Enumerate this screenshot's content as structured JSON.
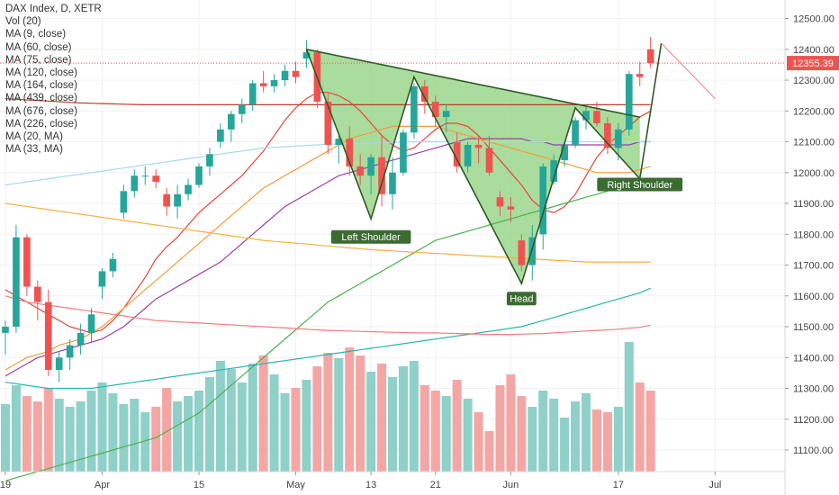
{
  "legend": {
    "title": "DAX Index, D, XETR",
    "items": [
      "Vol (20)",
      "MA (9, close)",
      "MA (60, close)",
      "MA (75, close)",
      "MA (120, close)",
      "MA (164, close)",
      "MA (439, close)",
      "MA (676, close)",
      "MA (226, close)",
      "MA (20, MA)",
      "MA (33, MA)"
    ]
  },
  "chart_data": {
    "type": "candlestick",
    "y_axis": {
      "range": [
        11030,
        12560
      ],
      "ticks": [
        11100,
        11200,
        11300,
        11400,
        11500,
        11600,
        11700,
        11800,
        11900,
        12000,
        12100,
        12200,
        12300,
        12400,
        12500
      ],
      "labels": [
        "11100.00",
        "11200.00",
        "11300.00",
        "11400.00",
        "11500.00",
        "11600.00",
        "11700.00",
        "11800.00",
        "11900.00",
        "12000.00",
        "12100.00",
        "12200.00",
        "12300.00",
        "12400.00",
        "12500.00"
      ]
    },
    "x_axis": {
      "ticks": [
        {
          "label": "19",
          "i": 0
        },
        {
          "label": "Apr",
          "i": 9
        },
        {
          "label": "15",
          "i": 18
        },
        {
          "label": "May",
          "i": 27
        },
        {
          "label": "13",
          "i": 34
        },
        {
          "label": "21",
          "i": 40
        },
        {
          "label": "Jun",
          "i": 47
        },
        {
          "label": "17",
          "i": 57
        },
        {
          "label": "Jul",
          "i": 66
        }
      ],
      "slots": 73
    },
    "last_price": {
      "value": 12355.39,
      "label": "12355.39"
    },
    "colors": {
      "up": "#26a69a",
      "down": "#ef5350",
      "vol_up": "#8fd0c8",
      "vol_down": "#f4a6a4",
      "pattern_fill": "#8ed27c",
      "pattern_stroke": "#2e5a27"
    },
    "candles": [
      [
        11480,
        11520,
        11410,
        11500
      ],
      [
        11500,
        11830,
        11480,
        11790
      ],
      [
        11790,
        11800,
        11600,
        11630
      ],
      [
        11630,
        11650,
        11520,
        11580
      ],
      [
        11580,
        11620,
        11340,
        11360
      ],
      [
        11360,
        11420,
        11320,
        11400
      ],
      [
        11400,
        11460,
        11360,
        11440
      ],
      [
        11440,
        11510,
        11410,
        11480
      ],
      [
        11480,
        11560,
        11450,
        11540
      ],
      [
        11630,
        11690,
        11590,
        11680
      ],
      [
        11680,
        11740,
        11660,
        11720
      ],
      [
        11870,
        11960,
        11850,
        11940
      ],
      [
        11940,
        12010,
        11920,
        11990
      ],
      [
        11990,
        12020,
        11960,
        11990
      ],
      [
        11990,
        12010,
        11950,
        11970
      ],
      [
        11930,
        11950,
        11860,
        11890
      ],
      [
        11890,
        11960,
        11850,
        11930
      ],
      [
        11930,
        11980,
        11910,
        11960
      ],
      [
        11960,
        12030,
        11950,
        12020
      ],
      [
        12020,
        12080,
        11990,
        12060
      ],
      [
        12100,
        12160,
        12080,
        12140
      ],
      [
        12140,
        12200,
        12100,
        12190
      ],
      [
        12190,
        12240,
        12160,
        12220
      ],
      [
        12220,
        12300,
        12200,
        12290
      ],
      [
        12290,
        12330,
        12260,
        12280
      ],
      [
        12280,
        12320,
        12260,
        12300
      ],
      [
        12300,
        12350,
        12280,
        12330
      ],
      [
        12330,
        12360,
        12290,
        12310
      ],
      [
        12370,
        12430,
        12340,
        12390
      ],
      [
        12390,
        12400,
        12210,
        12230
      ],
      [
        12230,
        12260,
        12060,
        12090
      ],
      [
        12090,
        12120,
        12030,
        12110
      ],
      [
        12110,
        12150,
        11990,
        12020
      ],
      [
        12020,
        12060,
        11960,
        11990
      ],
      [
        11990,
        12060,
        11930,
        12050
      ],
      [
        12050,
        12120,
        11890,
        11930
      ],
      [
        11930,
        12050,
        11880,
        12000
      ],
      [
        12000,
        12140,
        11990,
        12130
      ],
      [
        12130,
        12290,
        12110,
        12280
      ],
      [
        12280,
        12300,
        12190,
        12230
      ],
      [
        12230,
        12250,
        12150,
        12180
      ],
      [
        12180,
        12220,
        12130,
        12200
      ],
      [
        12100,
        12130,
        12000,
        12020
      ],
      [
        12020,
        12100,
        12000,
        12090
      ],
      [
        12090,
        12120,
        12030,
        12080
      ],
      [
        12080,
        12120,
        11990,
        12000
      ],
      [
        11920,
        11940,
        11860,
        11890
      ],
      [
        11890,
        11920,
        11840,
        11880
      ],
      [
        11780,
        11800,
        11680,
        11700
      ],
      [
        11700,
        11830,
        11650,
        11790
      ],
      [
        11800,
        12030,
        11750,
        12020
      ],
      [
        11970,
        12060,
        11960,
        12040
      ],
      [
        12040,
        12100,
        12020,
        12090
      ],
      [
        12090,
        12180,
        12080,
        12170
      ],
      [
        12170,
        12220,
        12140,
        12200
      ],
      [
        12200,
        12230,
        12150,
        12160
      ],
      [
        12160,
        12180,
        12060,
        12080
      ],
      [
        12080,
        12160,
        12040,
        12140
      ],
      [
        12140,
        12330,
        12120,
        12320
      ],
      [
        12320,
        12360,
        12280,
        12310
      ],
      [
        12400,
        12440,
        12340,
        12355
      ]
    ],
    "volume": [
      0.25,
      0.32,
      0.28,
      0.26,
      0.31,
      0.27,
      0.24,
      0.26,
      0.3,
      0.33,
      0.29,
      0.25,
      0.27,
      0.22,
      0.24,
      0.31,
      0.26,
      0.28,
      0.3,
      0.35,
      0.41,
      0.38,
      0.33,
      0.4,
      0.43,
      0.36,
      0.29,
      0.31,
      0.34,
      0.39,
      0.44,
      0.42,
      0.46,
      0.43,
      0.37,
      0.4,
      0.35,
      0.39,
      0.41,
      0.32,
      0.3,
      0.28,
      0.34,
      0.27,
      0.22,
      0.15,
      0.32,
      0.36,
      0.28,
      0.24,
      0.3,
      0.27,
      0.2,
      0.26,
      0.29,
      0.23,
      0.22,
      0.24,
      0.48,
      0.33,
      0.3
    ],
    "moving_averages": [
      {
        "name": "MA (9, close)",
        "color": "#e8453c",
        "start": 0,
        "values": [
          11620,
          11600,
          11580,
          11560,
          11540,
          11520,
          11500,
          11490,
          11480,
          11490,
          11520,
          11560,
          11610,
          11660,
          11720,
          11760,
          11790,
          11830,
          11870,
          11900,
          11930,
          11960,
          11990,
          12030,
          12070,
          12120,
          12170,
          12210,
          12240,
          12260,
          12260,
          12250,
          12230,
          12200,
          12160,
          12120,
          12090,
          12070,
          12080,
          12110,
          12140,
          12160,
          12160,
          12150,
          12120,
          12080,
          12040,
          12000,
          11960,
          11910,
          11880,
          11870,
          11890,
          11930,
          11990,
          12050,
          12090,
          12120,
          12150,
          12180,
          12200
        ]
      },
      {
        "name": "MA (60, close)",
        "color": "#9c3fa8",
        "start": 0,
        "values": [
          11340,
          11360,
          11380,
          11400,
          11410,
          11420,
          11430,
          11440,
          11450,
          11460,
          11480,
          11500,
          11530,
          11560,
          11590,
          11610,
          11630,
          11650,
          11670,
          11690,
          11710,
          11740,
          11770,
          11800,
          11830,
          11860,
          11890,
          11910,
          11930,
          11950,
          11970,
          11990,
          12000,
          12010,
          12020,
          12030,
          12040,
          12050,
          12060,
          12070,
          12080,
          12090,
          12100,
          12110,
          12110,
          12110,
          12110,
          12110,
          12110,
          12100,
          12100,
          12090,
          12090,
          12090,
          12090,
          12090,
          12090,
          12090,
          12090,
          12100,
          12100
        ]
      },
      {
        "name": "MA (75, close)",
        "color": "#f29b3c",
        "start": 0,
        "values": [
          11360,
          11380,
          11400,
          11410,
          11420,
          11440,
          11450,
          11460,
          11480,
          11500,
          11530,
          11560,
          11590,
          11620,
          11650,
          11680,
          11710,
          11740,
          11770,
          11800,
          11830,
          11860,
          11890,
          11920,
          11950,
          11970,
          11990,
          12010,
          12030,
          12050,
          12070,
          12090,
          12110,
          12120,
          12130,
          12140,
          12150,
          12150,
          12150,
          12150,
          12150,
          12140,
          12130,
          12120,
          12110,
          12100,
          12090,
          12080,
          12070,
          12060,
          12050,
          12040,
          12030,
          12020,
          12010,
          12000,
          12000,
          12000,
          12000,
          12010,
          12020
        ]
      },
      {
        "name": "MA (120, close)",
        "color": "#4caf50",
        "start": 0,
        "values": [
          11000,
          11010,
          11020,
          11030,
          11040,
          11050,
          11060,
          11070,
          11080,
          11090,
          11100,
          11110,
          11120,
          11130,
          11140,
          11160,
          11180,
          11200,
          11220,
          11250,
          11280,
          11310,
          11340,
          11370,
          11400,
          11430,
          11460,
          11490,
          11520,
          11550,
          11580,
          11600,
          11620,
          11640,
          11660,
          11680,
          11700,
          11720,
          11740,
          11760,
          11780,
          11790,
          11800,
          11810,
          11820,
          11830,
          11840,
          11850,
          11860,
          11870,
          11880,
          11890,
          11900,
          11910,
          11920,
          11930,
          11940,
          11950,
          11960,
          11970,
          11980
        ]
      },
      {
        "name": "MA (164, close)",
        "color": "#26b5b0",
        "start": 0,
        "values": [
          11320,
          11315,
          11310,
          11305,
          11300,
          11300,
          11300,
          11300,
          11300,
          11305,
          11310,
          11315,
          11320,
          11325,
          11330,
          11335,
          11340,
          11345,
          11350,
          11355,
          11360,
          11365,
          11370,
          11375,
          11380,
          11385,
          11390,
          11395,
          11400,
          11405,
          11410,
          11415,
          11420,
          11425,
          11430,
          11435,
          11440,
          11445,
          11450,
          11455,
          11460,
          11465,
          11470,
          11475,
          11480,
          11485,
          11490,
          11495,
          11500,
          11510,
          11520,
          11530,
          11540,
          11550,
          11560,
          11570,
          11580,
          11590,
          11600,
          11610,
          11625
        ]
      },
      {
        "name": "MA (439, close)",
        "color": "#f47c7c",
        "start": 0,
        "values": [
          11600,
          11590,
          11580,
          11575,
          11570,
          11565,
          11560,
          11555,
          11550,
          11545,
          11540,
          11535,
          11530,
          11525,
          11520,
          11518,
          11516,
          11514,
          11512,
          11510,
          11508,
          11506,
          11504,
          11502,
          11500,
          11498,
          11496,
          11494,
          11492,
          11490,
          11488,
          11487,
          11486,
          11485,
          11484,
          11483,
          11482,
          11481,
          11480,
          11480,
          11480,
          11479,
          11478,
          11477,
          11476,
          11475,
          11475,
          11475,
          11476,
          11477,
          11478,
          11480,
          11482,
          11484,
          11486,
          11488,
          11490,
          11492,
          11495,
          11498,
          11505
        ]
      },
      {
        "name": "MA (676, close)",
        "color": "#a8d8ea",
        "start": 0,
        "values": [
          11960,
          11965,
          11970,
          11975,
          11980,
          11985,
          11990,
          11995,
          12000,
          12005,
          12010,
          12015,
          12020,
          12025,
          12030,
          12035,
          12040,
          12045,
          12050,
          12055,
          12060,
          12065,
          12070,
          12075,
          12080,
          12082,
          12084,
          12086,
          12088,
          12090,
          12092,
          12093,
          12094,
          12095,
          12096,
          12097,
          12098,
          12099,
          12100,
          12100,
          12100,
          12100,
          12100,
          12100,
          12100,
          12100,
          12100,
          12100,
          12100,
          12100,
          12100,
          12100,
          12100,
          12100,
          12100,
          12100,
          12100,
          12100,
          12100,
          12100,
          12100
        ]
      },
      {
        "name": "MA (226, close)",
        "color": "#f5b041",
        "start": 0,
        "values": [
          11900,
          11895,
          11890,
          11885,
          11880,
          11875,
          11870,
          11865,
          11860,
          11855,
          11850,
          11845,
          11840,
          11835,
          11830,
          11825,
          11820,
          11815,
          11810,
          11805,
          11800,
          11795,
          11790,
          11785,
          11780,
          11777,
          11774,
          11771,
          11768,
          11765,
          11762,
          11759,
          11756,
          11753,
          11750,
          11748,
          11746,
          11744,
          11742,
          11740,
          11738,
          11736,
          11734,
          11732,
          11730,
          11728,
          11726,
          11724,
          11722,
          11720,
          11718,
          11716,
          11714,
          11712,
          11710,
          11710,
          11710,
          11710,
          11710,
          11710,
          11710
        ]
      },
      {
        "name": "MA (33, MA)",
        "color": "#c0392b",
        "start": 0,
        "values": [
          12240,
          12238,
          12236,
          12234,
          12232,
          12230,
          12228,
          12226,
          12225,
          12224,
          12223,
          12222,
          12221,
          12220,
          12220,
          12220,
          12220,
          12220,
          12220,
          12220,
          12220,
          12220,
          12220,
          12220,
          12220,
          12220,
          12220,
          12220,
          12220,
          12220,
          12220,
          12220,
          12220,
          12220,
          12220,
          12220,
          12220,
          12220,
          12220,
          12220,
          12220,
          12220,
          12220,
          12220,
          12220,
          12220,
          12220,
          12220,
          12220,
          12220,
          12220,
          12220,
          12220,
          12220,
          12220,
          12220,
          12220,
          12220,
          12220,
          12220,
          12220
        ]
      }
    ],
    "pattern": {
      "points": [
        [
          28,
          12400
        ],
        [
          34,
          11850
        ],
        [
          38,
          12310
        ],
        [
          48,
          11640
        ],
        [
          53,
          12210
        ],
        [
          59,
          11980
        ],
        [
          61,
          12420
        ]
      ],
      "trendline": [
        [
          28,
          12400
        ],
        [
          59,
          12180
        ]
      ],
      "projection": [
        [
          61,
          12420
        ],
        [
          66,
          12240
        ]
      ],
      "labels": [
        {
          "text": "Left Shoulder",
          "i": 34,
          "v": 11790
        },
        {
          "text": "Head",
          "i": 48,
          "v": 11590
        },
        {
          "text": "Right Shoulder",
          "i": 59,
          "v": 11960
        }
      ]
    }
  }
}
